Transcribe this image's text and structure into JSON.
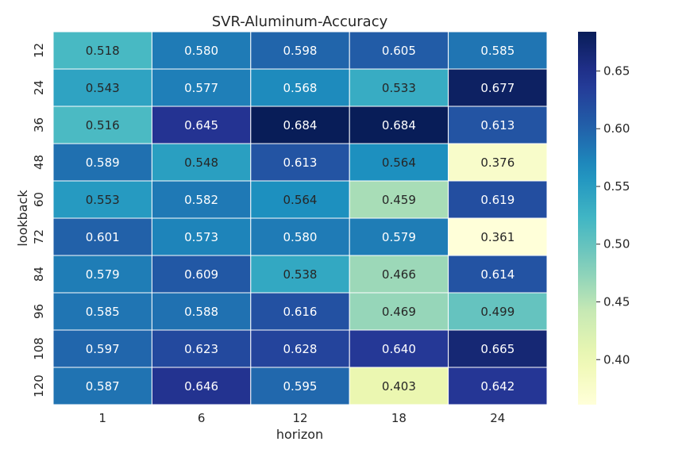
{
  "chart_data": {
    "type": "heatmap",
    "title": "SVR-Aluminum-Accuracy",
    "xlabel": "horizon",
    "ylabel": "lookback",
    "x_categories": [
      "1",
      "6",
      "12",
      "18",
      "24"
    ],
    "y_categories": [
      "12",
      "24",
      "36",
      "48",
      "60",
      "72",
      "84",
      "96",
      "108",
      "120"
    ],
    "values": [
      [
        0.518,
        0.58,
        0.598,
        0.605,
        0.585
      ],
      [
        0.543,
        0.577,
        0.568,
        0.533,
        0.677
      ],
      [
        0.516,
        0.645,
        0.684,
        0.684,
        0.613
      ],
      [
        0.589,
        0.548,
        0.613,
        0.564,
        0.376
      ],
      [
        0.553,
        0.582,
        0.564,
        0.459,
        0.619
      ],
      [
        0.601,
        0.573,
        0.58,
        0.579,
        0.361
      ],
      [
        0.579,
        0.609,
        0.538,
        0.466,
        0.614
      ],
      [
        0.585,
        0.588,
        0.616,
        0.469,
        0.499
      ],
      [
        0.597,
        0.623,
        0.628,
        0.64,
        0.665
      ],
      [
        0.587,
        0.646,
        0.595,
        0.403,
        0.642
      ]
    ],
    "value_format": "0.000",
    "colormap": "YlGnBu",
    "color_range": [
      0.361,
      0.684
    ],
    "colorbar_ticks": [
      0.4,
      0.45,
      0.5,
      0.55,
      0.6,
      0.65
    ],
    "cell_borders": "white"
  }
}
